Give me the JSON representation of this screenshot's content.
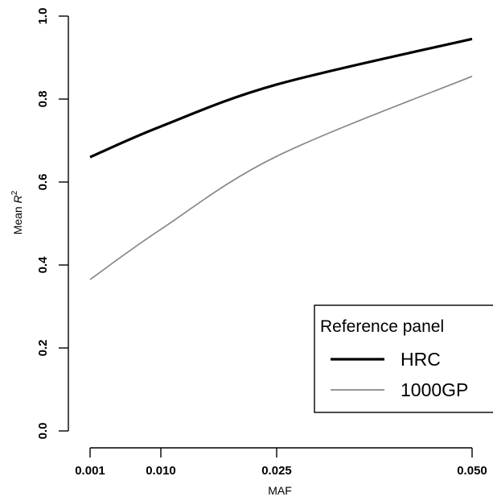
{
  "chart_data": {
    "type": "line",
    "title": "",
    "xlabel": "MAF",
    "ylabel_text": "Mean ",
    "ylabel_var": "R",
    "ylabel_sup": "2",
    "x_ticks": [
      {
        "value": 0.001,
        "label": "0.001"
      },
      {
        "value": 0.01,
        "label": "0.010"
      },
      {
        "value": 0.025,
        "label": "0.025"
      },
      {
        "value": 0.05,
        "label": "0.050"
      }
    ],
    "y_ticks": [
      {
        "value": 0.0,
        "label": "0.0"
      },
      {
        "value": 0.2,
        "label": "0.2"
      },
      {
        "value": 0.4,
        "label": "0.4"
      },
      {
        "value": 0.6,
        "label": "0.6"
      },
      {
        "value": 0.8,
        "label": "0.8"
      },
      {
        "value": 1.0,
        "label": "1.0"
      }
    ],
    "xlim": [
      0.001,
      0.05
    ],
    "ylim": [
      0.0,
      1.0
    ],
    "grid": false,
    "legend": {
      "title": "Reference panel",
      "placement": "bottom-right"
    },
    "series": [
      {
        "name": "HRC",
        "color": "#000000",
        "x": [
          0.001,
          0.01,
          0.025,
          0.05
        ],
        "y": [
          0.66,
          0.734,
          0.835,
          0.945
        ]
      },
      {
        "name": "1000GP",
        "color": "#888888",
        "x": [
          0.001,
          0.01,
          0.025,
          0.05
        ],
        "y": [
          0.365,
          0.486,
          0.662,
          0.855
        ]
      }
    ]
  }
}
